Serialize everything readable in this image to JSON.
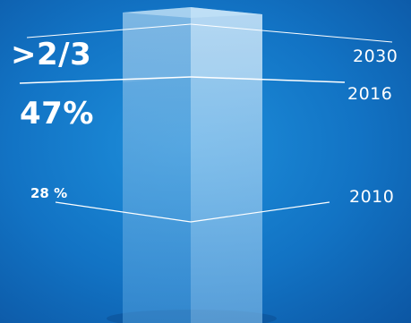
{
  "milestones": [
    {
      "year": "2030",
      "share": ">2/3"
    },
    {
      "year": "2016",
      "share": "47%"
    },
    {
      "year": "2010",
      "share": "28 %"
    }
  ],
  "colors": {
    "background": "#1273c4",
    "pillar_light": "#a9d3f0",
    "pillar_dark": "#4a9fe0",
    "text": "#ffffff"
  }
}
